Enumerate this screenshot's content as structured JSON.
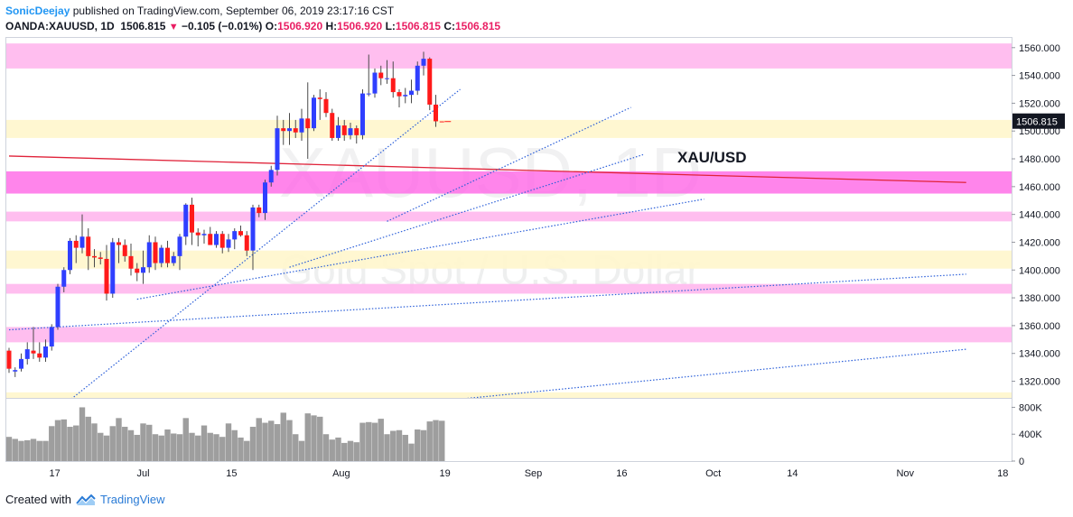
{
  "header": {
    "author": "SonicDeejay",
    "published": "published on TradingView.com, September 06, 2019 23:17:16 CST",
    "symbol": "OANDA:XAUUSD, 1D",
    "last": "1506.815",
    "change": "−0.105 (−0.01%)",
    "o_label": "O:",
    "o_value": "1506.920",
    "h_label": "H:",
    "h_value": "1506.920",
    "l_label": "L:",
    "l_value": "1506.815",
    "c_label": "C:",
    "c_value": "1506.815"
  },
  "footer": {
    "created_with": "Created with",
    "brand": "TradingView"
  },
  "chart_data": {
    "type": "candlestick",
    "title": "XAU/USD",
    "watermark_symbol": "XAUUSD, 1D",
    "watermark_desc": "Gold Spot / U.S. Dollar",
    "price_label": "1506.815",
    "ylim": [
      1308,
      1567
    ],
    "y_ticks": [
      "1560.000",
      "1540.000",
      "1520.000",
      "1500.000",
      "1480.000",
      "1460.000",
      "1440.000",
      "1420.000",
      "1400.000",
      "1380.000",
      "1360.000",
      "1340.000",
      "1320.000"
    ],
    "x_ticks": [
      "17",
      "Jul",
      "15",
      "Aug",
      "19",
      "Sep",
      "16",
      "Oct",
      "14",
      "Nov",
      "18"
    ],
    "volume_ticks": [
      "800K",
      "400K",
      "0"
    ],
    "volume_ylim": [
      0,
      900000
    ],
    "colors": {
      "up": "#2f3fff",
      "down": "#ff1a1a",
      "wick": "#4a4a4a",
      "pink_zone": "#ffb3ec",
      "yellow_zone": "#fff6cc",
      "magenta_zone": "#ff66e6",
      "trend_red": "#e0233a",
      "trend_blue": "#2b5fd9",
      "volume": "#9e9e9e",
      "price_label_bg": "#131722"
    },
    "zones": [
      {
        "kind": "pink",
        "from": 1545,
        "to": 1563
      },
      {
        "kind": "yellow",
        "from": 1495,
        "to": 1508
      },
      {
        "kind": "magenta",
        "from": 1455,
        "to": 1471
      },
      {
        "kind": "pink",
        "from": 1435,
        "to": 1442
      },
      {
        "kind": "yellow",
        "from": 1401,
        "to": 1414
      },
      {
        "kind": "pink",
        "from": 1383,
        "to": 1390
      },
      {
        "kind": "pink",
        "from": 1348,
        "to": 1359
      },
      {
        "kind": "yellow",
        "from": 1306,
        "to": 1312
      }
    ],
    "candles": [
      {
        "o": 1342,
        "h": 1344,
        "l": 1326,
        "c": 1329
      },
      {
        "o": 1327,
        "h": 1330,
        "l": 1323,
        "c": 1328
      },
      {
        "o": 1329,
        "h": 1340,
        "l": 1327,
        "c": 1336
      },
      {
        "o": 1336,
        "h": 1348,
        "l": 1332,
        "c": 1343
      },
      {
        "o": 1342,
        "h": 1359,
        "l": 1336,
        "c": 1340
      },
      {
        "o": 1340,
        "h": 1348,
        "l": 1334,
        "c": 1337
      },
      {
        "o": 1337,
        "h": 1350,
        "l": 1334,
        "c": 1345
      },
      {
        "o": 1345,
        "h": 1361,
        "l": 1342,
        "c": 1359
      },
      {
        "o": 1359,
        "h": 1390,
        "l": 1357,
        "c": 1388
      },
      {
        "o": 1388,
        "h": 1402,
        "l": 1384,
        "c": 1400
      },
      {
        "o": 1400,
        "h": 1423,
        "l": 1397,
        "c": 1421
      },
      {
        "o": 1421,
        "h": 1425,
        "l": 1405,
        "c": 1416
      },
      {
        "o": 1416,
        "h": 1440,
        "l": 1412,
        "c": 1424
      },
      {
        "o": 1424,
        "h": 1430,
        "l": 1400,
        "c": 1410
      },
      {
        "o": 1410,
        "h": 1415,
        "l": 1402,
        "c": 1409
      },
      {
        "o": 1409,
        "h": 1413,
        "l": 1404,
        "c": 1408
      },
      {
        "o": 1408,
        "h": 1418,
        "l": 1378,
        "c": 1383
      },
      {
        "o": 1383,
        "h": 1423,
        "l": 1380,
        "c": 1420
      },
      {
        "o": 1420,
        "h": 1423,
        "l": 1405,
        "c": 1418
      },
      {
        "o": 1418,
        "h": 1422,
        "l": 1406,
        "c": 1410
      },
      {
        "o": 1410,
        "h": 1419,
        "l": 1396,
        "c": 1401
      },
      {
        "o": 1401,
        "h": 1405,
        "l": 1392,
        "c": 1398
      },
      {
        "o": 1398,
        "h": 1414,
        "l": 1390,
        "c": 1402
      },
      {
        "o": 1402,
        "h": 1425,
        "l": 1398,
        "c": 1420
      },
      {
        "o": 1420,
        "h": 1424,
        "l": 1400,
        "c": 1405
      },
      {
        "o": 1405,
        "h": 1418,
        "l": 1402,
        "c": 1416
      },
      {
        "o": 1416,
        "h": 1421,
        "l": 1402,
        "c": 1405
      },
      {
        "o": 1405,
        "h": 1413,
        "l": 1403,
        "c": 1410
      },
      {
        "o": 1410,
        "h": 1426,
        "l": 1400,
        "c": 1424
      },
      {
        "o": 1424,
        "h": 1448,
        "l": 1418,
        "c": 1447
      },
      {
        "o": 1447,
        "h": 1452,
        "l": 1418,
        "c": 1427
      },
      {
        "o": 1427,
        "h": 1430,
        "l": 1417,
        "c": 1425
      },
      {
        "o": 1425,
        "h": 1429,
        "l": 1419,
        "c": 1426
      },
      {
        "o": 1426,
        "h": 1431,
        "l": 1418,
        "c": 1418
      },
      {
        "o": 1418,
        "h": 1428,
        "l": 1416,
        "c": 1426
      },
      {
        "o": 1426,
        "h": 1428,
        "l": 1412,
        "c": 1416
      },
      {
        "o": 1416,
        "h": 1426,
        "l": 1413,
        "c": 1422
      },
      {
        "o": 1422,
        "h": 1430,
        "l": 1415,
        "c": 1428
      },
      {
        "o": 1428,
        "h": 1432,
        "l": 1424,
        "c": 1425
      },
      {
        "o": 1425,
        "h": 1428,
        "l": 1410,
        "c": 1414
      },
      {
        "o": 1414,
        "h": 1447,
        "l": 1400,
        "c": 1445
      },
      {
        "o": 1445,
        "h": 1447,
        "l": 1438,
        "c": 1441
      },
      {
        "o": 1441,
        "h": 1465,
        "l": 1436,
        "c": 1463
      },
      {
        "o": 1463,
        "h": 1475,
        "l": 1460,
        "c": 1472
      },
      {
        "o": 1472,
        "h": 1511,
        "l": 1468,
        "c": 1502
      },
      {
        "o": 1502,
        "h": 1508,
        "l": 1490,
        "c": 1500
      },
      {
        "o": 1500,
        "h": 1513,
        "l": 1490,
        "c": 1502
      },
      {
        "o": 1502,
        "h": 1508,
        "l": 1495,
        "c": 1499
      },
      {
        "o": 1499,
        "h": 1516,
        "l": 1493,
        "c": 1509
      },
      {
        "o": 1509,
        "h": 1535,
        "l": 1480,
        "c": 1502
      },
      {
        "o": 1502,
        "h": 1526,
        "l": 1500,
        "c": 1524
      },
      {
        "o": 1524,
        "h": 1530,
        "l": 1508,
        "c": 1523
      },
      {
        "o": 1523,
        "h": 1528,
        "l": 1510,
        "c": 1513
      },
      {
        "o": 1513,
        "h": 1516,
        "l": 1493,
        "c": 1495
      },
      {
        "o": 1495,
        "h": 1510,
        "l": 1493,
        "c": 1504
      },
      {
        "o": 1504,
        "h": 1508,
        "l": 1493,
        "c": 1497
      },
      {
        "o": 1497,
        "h": 1506,
        "l": 1494,
        "c": 1502
      },
      {
        "o": 1502,
        "h": 1504,
        "l": 1491,
        "c": 1497
      },
      {
        "o": 1497,
        "h": 1530,
        "l": 1494,
        "c": 1527
      },
      {
        "o": 1527,
        "h": 1555,
        "l": 1525,
        "c": 1527
      },
      {
        "o": 1527,
        "h": 1545,
        "l": 1524,
        "c": 1542
      },
      {
        "o": 1542,
        "h": 1547,
        "l": 1533,
        "c": 1538
      },
      {
        "o": 1538,
        "h": 1551,
        "l": 1534,
        "c": 1538
      },
      {
        "o": 1538,
        "h": 1550,
        "l": 1524,
        "c": 1528
      },
      {
        "o": 1528,
        "h": 1530,
        "l": 1517,
        "c": 1525
      },
      {
        "o": 1525,
        "h": 1531,
        "l": 1520,
        "c": 1526
      },
      {
        "o": 1526,
        "h": 1537,
        "l": 1520,
        "c": 1529
      },
      {
        "o": 1529,
        "h": 1550,
        "l": 1526,
        "c": 1547
      },
      {
        "o": 1547,
        "h": 1557,
        "l": 1540,
        "c": 1552
      },
      {
        "o": 1552,
        "h": 1553,
        "l": 1515,
        "c": 1519
      },
      {
        "o": 1519,
        "h": 1526,
        "l": 1503,
        "c": 1507
      },
      {
        "o": 1506.92,
        "h": 1506.92,
        "l": 1506.815,
        "c": 1506.815
      }
    ],
    "volumes": [
      360000,
      330000,
      300000,
      310000,
      330000,
      300000,
      300000,
      520000,
      610000,
      620000,
      510000,
      530000,
      800000,
      660000,
      560000,
      420000,
      380000,
      520000,
      640000,
      510000,
      460000,
      390000,
      560000,
      540000,
      400000,
      380000,
      470000,
      410000,
      400000,
      640000,
      420000,
      380000,
      530000,
      420000,
      400000,
      360000,
      560000,
      460000,
      350000,
      300000,
      510000,
      640000,
      570000,
      600000,
      550000,
      720000,
      610000,
      400000,
      300000,
      710000,
      680000,
      660000,
      400000,
      320000,
      350000,
      270000,
      300000,
      280000,
      570000,
      580000,
      570000,
      630000,
      400000,
      450000,
      460000,
      390000,
      260000,
      470000,
      460000,
      590000,
      610000,
      600000
    ],
    "trend_lines": [
      {
        "style": "solid",
        "color": "red",
        "from": {
          "bar": 0,
          "price": 1482
        },
        "to": {
          "bar": 157,
          "price": 1463
        }
      },
      {
        "style": "dotted",
        "from": {
          "bar": 0,
          "price": 1357
        },
        "to": {
          "bar": 157,
          "price": 1397
        }
      },
      {
        "style": "dotted",
        "from": {
          "bar": 69,
          "price": 1305
        },
        "to": {
          "bar": 157,
          "price": 1343
        }
      },
      {
        "style": "dotted",
        "from": {
          "bar": 21,
          "price": 1379
        },
        "to": {
          "bar": 114,
          "price": 1451
        }
      },
      {
        "style": "dotted",
        "from": {
          "bar": 46,
          "price": 1402
        },
        "to": {
          "bar": 104,
          "price": 1483
        }
      },
      {
        "style": "dotted",
        "from": {
          "bar": 9,
          "price": 1303
        },
        "to": {
          "bar": 74,
          "price": 1530
        }
      },
      {
        "style": "dotted",
        "from": {
          "bar": 62,
          "price": 1435
        },
        "to": {
          "bar": 102,
          "price": 1517
        }
      }
    ],
    "bar_spacing_px": 6.75
  }
}
